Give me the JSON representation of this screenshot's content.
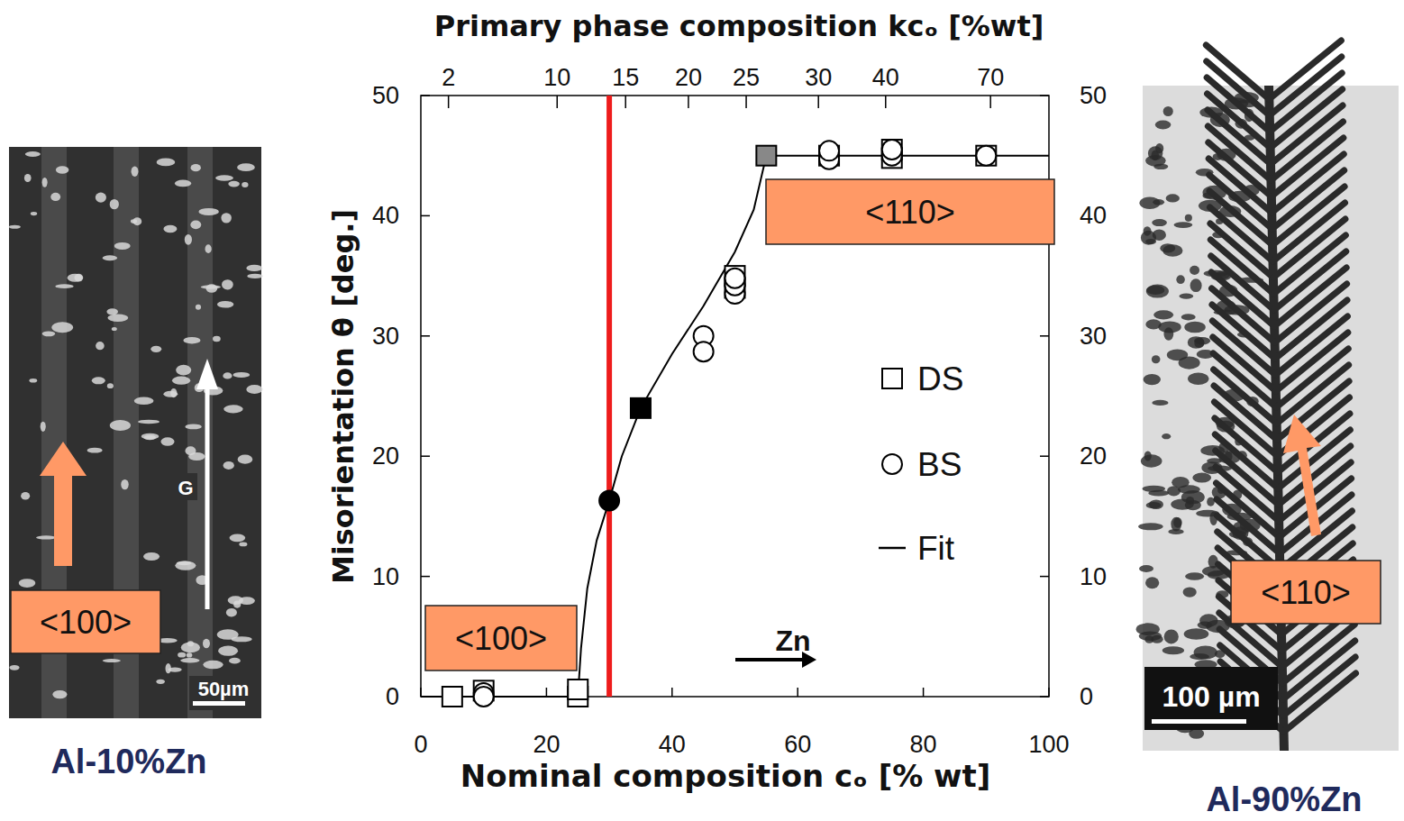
{
  "chart_data": {
    "type": "scatter",
    "xlabel": "Nominal composition cₒ [% wt]",
    "ylabel": "Misorientation θ [deg.]",
    "x2label": "Primary phase composition kcₒ [%wt]",
    "xlim": [
      0,
      100
    ],
    "xticks": [
      0,
      20,
      40,
      60,
      80,
      100
    ],
    "ylim": [
      0,
      50
    ],
    "yticks": [
      0,
      10,
      20,
      30,
      40,
      50
    ],
    "y2lim": [
      0,
      50
    ],
    "y2ticks": [
      0,
      10,
      20,
      30,
      40,
      50
    ],
    "x2ticks": [
      {
        "value": 4.4,
        "label": "2"
      },
      {
        "value": 21.7,
        "label": "10"
      },
      {
        "value": 32.6,
        "label": "15"
      },
      {
        "value": 42.6,
        "label": "20"
      },
      {
        "value": 51.8,
        "label": "25"
      },
      {
        "value": 63.3,
        "label": "30"
      },
      {
        "value": 74,
        "label": "40"
      },
      {
        "value": 90.7,
        "label": "70"
      }
    ],
    "legend": "right",
    "series": [
      {
        "name": "DS",
        "type": "scatter",
        "marker": "square",
        "color": "#000000",
        "x": [
          5,
          10,
          25,
          25,
          35,
          50,
          50,
          55,
          65,
          75,
          75,
          90
        ],
        "values": [
          0,
          0.5,
          0,
          0.6,
          24,
          35,
          34,
          45,
          45,
          45.5,
          44.8,
          45
        ],
        "colors": [
          "#ffffff",
          "#ffffff",
          "#ffffff",
          "#ffffff",
          "#000000",
          "#ffffff",
          "#ffffff",
          "#888888",
          "#ffffff",
          "#ffffff",
          "#ffffff",
          "#ffffff"
        ]
      },
      {
        "name": "BS",
        "type": "scatter",
        "marker": "circle",
        "color": "#000000",
        "x": [
          10,
          10,
          30,
          45,
          45,
          50,
          50,
          50,
          65,
          65,
          75,
          75,
          90
        ],
        "values": [
          0.3,
          0,
          16.3,
          30,
          28.7,
          33.5,
          34.2,
          34.8,
          44.7,
          45.4,
          45,
          45.5,
          45
        ],
        "colors": [
          "#ffffff",
          "#ffffff",
          "#000000",
          "#ffffff",
          "#ffffff",
          "#ffffff",
          "#ffffff",
          "#ffffff",
          "#ffffff",
          "#ffffff",
          "#ffffff",
          "#ffffff",
          "#ffffff"
        ]
      },
      {
        "name": "Fit",
        "type": "line",
        "line_style": "solid",
        "color": "#000000",
        "x": [
          0,
          25,
          25.5,
          26.5,
          28,
          30,
          32,
          35,
          40,
          45,
          50,
          53,
          55,
          100
        ],
        "values": [
          0,
          0,
          4,
          9,
          13,
          16.3,
          20,
          24,
          28.5,
          32.5,
          37,
          40.5,
          45,
          45
        ]
      }
    ],
    "marker_line": {
      "x": 30,
      "color": "#ee1c1c"
    },
    "annotations": [
      "<100>",
      "<110>",
      "Zn"
    ]
  },
  "micrographs": [
    {
      "caption": "Al-10%Zn",
      "direction": "<100>",
      "gradient": "G",
      "scale_bar": "50µm"
    },
    {
      "caption": "Al-90%Zn",
      "direction": "<110>",
      "scale_bar": "100 µm"
    }
  ]
}
